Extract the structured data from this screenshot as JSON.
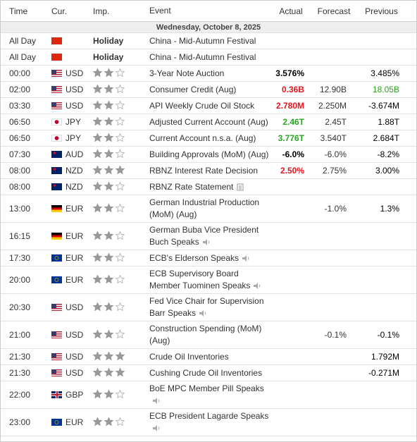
{
  "header": {
    "columns": [
      "Time",
      "Cur.",
      "Imp.",
      "Event",
      "Actual",
      "Forecast",
      "Previous"
    ]
  },
  "date": "Wednesday, October 8, 2025",
  "rows": [
    {
      "time": "All Day",
      "importance_label": "Holiday",
      "event": "China - Mid-Autumn Festival"
    },
    {
      "time": "All Day",
      "importance_label": "Holiday",
      "event": "China - Mid-Autumn Festival"
    },
    {
      "time": "00:00",
      "currency": "USD",
      "importance": 2,
      "event": "3-Year Note Auction",
      "actual": "3.576%",
      "previous": "3.485%"
    },
    {
      "time": "02:00",
      "currency": "USD",
      "importance": 2,
      "event": "Consumer Credit (Aug)",
      "actual": "0.36B",
      "actual_color": "#e8141e",
      "forecast": "12.90B",
      "previous": "18.05B",
      "previous_color": "#26a51e"
    },
    {
      "time": "03:30",
      "currency": "USD",
      "importance": 2,
      "event": "API Weekly Crude Oil Stock",
      "actual": "2.780M",
      "actual_color": "#e8141e",
      "forecast": "2.250M",
      "previous": "-3.674M"
    },
    {
      "time": "06:50",
      "currency": "JPY",
      "importance": 2,
      "event": "Adjusted Current Account (Aug)",
      "actual": "2.46T",
      "actual_color": "#26a51e",
      "forecast": "2.45T",
      "previous": "1.88T"
    },
    {
      "time": "06:50",
      "currency": "JPY",
      "importance": 2,
      "event": "Current Account n.s.a. (Aug)",
      "actual": "3.776T",
      "actual_color": "#26a51e",
      "forecast": "3.540T",
      "previous": "2.684T"
    },
    {
      "time": "07:30",
      "currency": "AUD",
      "importance": 2,
      "event": "Building Approvals (MoM) (Aug)",
      "actual": "-6.0%",
      "forecast": "-6.0%",
      "previous": "-8.2%"
    },
    {
      "time": "08:00",
      "currency": "NZD",
      "importance": 3,
      "event": "RBNZ Interest Rate Decision",
      "actual": "2.50%",
      "actual_color": "#e8141e",
      "forecast": "2.75%",
      "previous": "3.00%"
    },
    {
      "time": "08:00",
      "currency": "NZD",
      "importance": 2,
      "event": "RBNZ Rate Statement",
      "icon": "document"
    },
    {
      "time": "13:00",
      "currency": "EUR",
      "importance": 2,
      "event": "German Industrial Production (MoM) (Aug)",
      "forecast": "-1.0%",
      "previous": "1.3%"
    },
    {
      "time": "16:15",
      "currency": "EUR",
      "importance": 2,
      "event": "German Buba Vice President Buch Speaks",
      "icon": "speaker"
    },
    {
      "time": "17:30",
      "currency": "EUR",
      "importance": 2,
      "event": "ECB's Elderson Speaks",
      "icon": "speaker"
    },
    {
      "time": "20:00",
      "currency": "EUR",
      "importance": 2,
      "event": "ECB Supervisory Board Member Tuominen Speaks",
      "icon": "speaker"
    },
    {
      "time": "20:30",
      "currency": "USD",
      "importance": 2,
      "event": "Fed Vice Chair for Supervision Barr Speaks",
      "icon": "speaker"
    },
    {
      "time": "21:00",
      "currency": "USD",
      "importance": 2,
      "event": "Construction Spending (MoM) (Aug)",
      "forecast": "-0.1%",
      "previous": "-0.1%"
    },
    {
      "time": "21:30",
      "currency": "USD",
      "importance": 3,
      "event": "Crude Oil Inventories",
      "previous": "1.792M"
    },
    {
      "time": "21:30",
      "currency": "USD",
      "importance": 3,
      "event": "Cushing Crude Oil Inventories",
      "previous": "-0.271M"
    },
    {
      "time": "22:00",
      "currency": "GBP",
      "importance": 2,
      "event": "BoE MPC Member Pill Speaks",
      "icon": "speaker"
    },
    {
      "time": "23:00",
      "currency": "EUR",
      "importance": 2,
      "event": "ECB President Lagarde Speaks",
      "icon": "speaker"
    }
  ]
}
